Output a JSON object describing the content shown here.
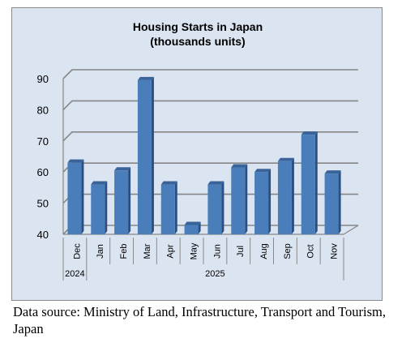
{
  "chart_data": {
    "type": "bar",
    "title": "Housing Starts in Japan",
    "subtitle": "(thousands units)",
    "categories": [
      "Dec",
      "Jan",
      "Feb",
      "Mar",
      "Apr",
      "May",
      "Jun",
      "Jul",
      "Aug",
      "Sep",
      "Oct",
      "Nov"
    ],
    "year_groups": [
      {
        "label": "2024",
        "categories": [
          "Dec"
        ]
      },
      {
        "label": "2025",
        "categories": [
          "Jan",
          "Feb",
          "Mar",
          "Apr",
          "May",
          "Jun",
          "Jul",
          "Aug",
          "Sep",
          "Oct",
          "Nov"
        ]
      }
    ],
    "values": [
      63,
      56,
      60.5,
      89.5,
      56,
      43,
      56,
      61.5,
      60,
      63.5,
      72,
      59.5
    ],
    "ylim": [
      40,
      90
    ],
    "yticks": [
      40,
      50,
      60,
      70,
      80,
      90
    ],
    "grid": true,
    "three_d": true,
    "colors": {
      "bar_front": "#4a7ebb",
      "bar_side": "#2b4f82",
      "bar_top": "#3a6399",
      "plot_background": "#dbe4f1",
      "gridline": "#868686"
    }
  },
  "footer": {
    "source": "Data source: Ministry of Land, Infrastructure, Transport and Tourism, Japan"
  }
}
